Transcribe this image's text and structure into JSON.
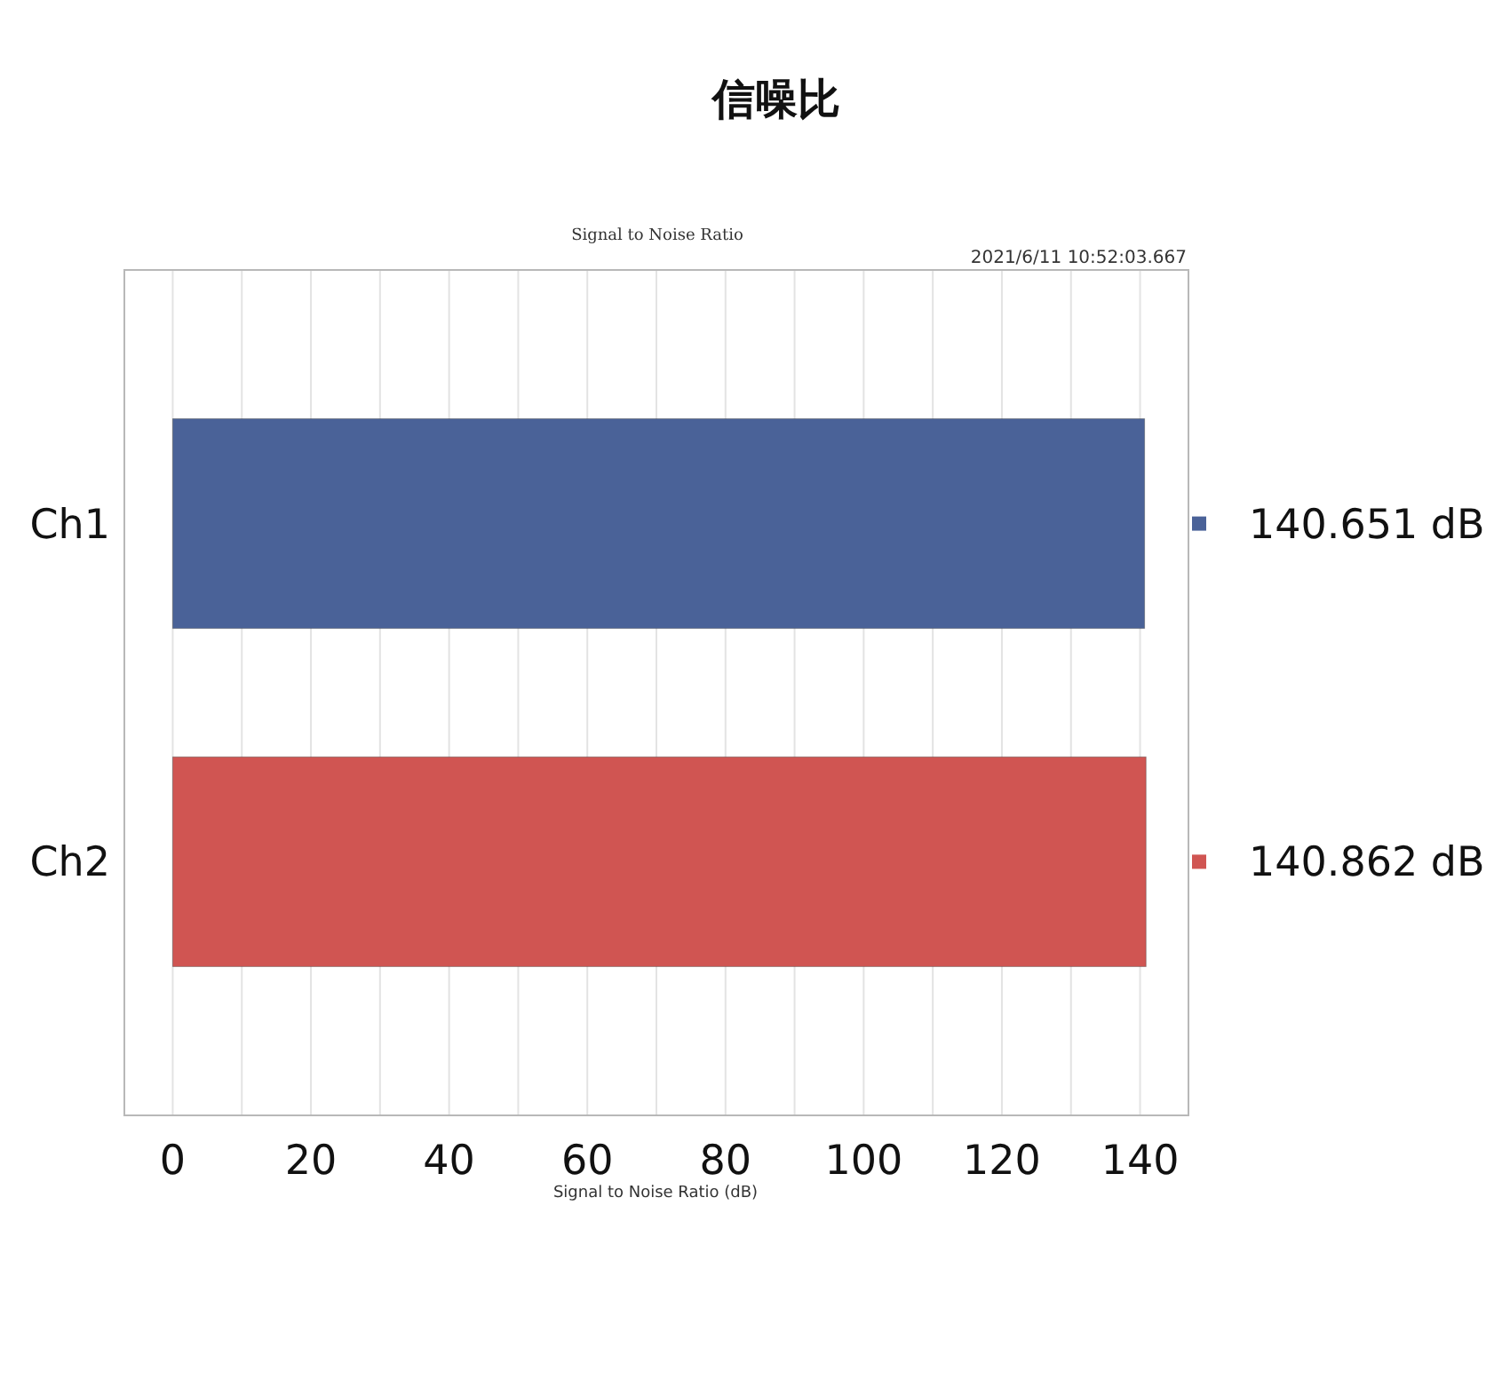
{
  "chart_data": {
    "type": "bar",
    "orientation": "horizontal",
    "title": "信噪比",
    "subtitle": "Signal to Noise Ratio",
    "xlabel": "Signal to Noise Ratio (dB)",
    "annotations": [
      "2021/6/11 10:52:03.667"
    ],
    "categories": [
      "Ch1",
      "Ch2"
    ],
    "values": [
      140.651,
      140.862
    ],
    "colors": [
      "#4a6298",
      "#d05552"
    ],
    "value_labels": [
      "140.651 dB",
      "140.862 dB"
    ],
    "xlim": [
      -7,
      147
    ],
    "xticks": [
      0,
      {
        "value": 10,
        "label": null
      },
      20,
      {
        "value": 30,
        "label": null
      },
      40,
      {
        "value": 50,
        "label": null
      },
      60,
      {
        "value": 70,
        "label": null
      },
      80,
      {
        "value": 90,
        "label": null
      },
      100,
      {
        "value": 110,
        "label": null
      },
      120,
      {
        "value": 130,
        "label": null
      },
      140
    ],
    "grid": true
  }
}
